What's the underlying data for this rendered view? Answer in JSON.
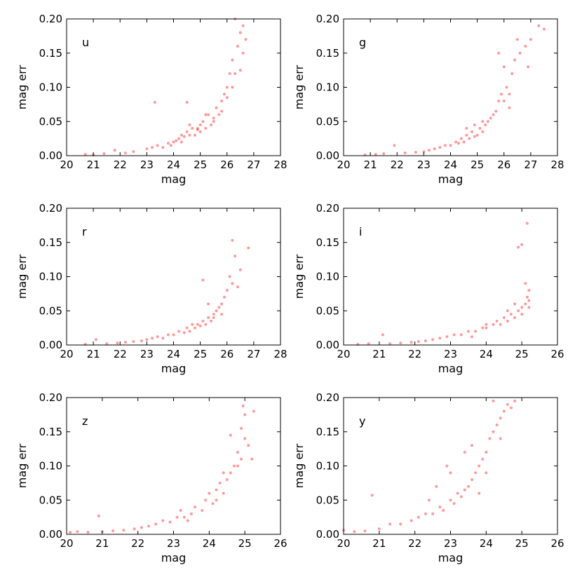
{
  "chart_data": [
    {
      "type": "scatter",
      "label": "u",
      "xlabel": "mag",
      "ylabel": "mag err",
      "xlim": [
        20,
        28
      ],
      "ylim": [
        0.0,
        0.2
      ],
      "xticks": [
        "20",
        "21",
        "22",
        "23",
        "24",
        "25",
        "26",
        "27",
        "28"
      ],
      "yticks": [
        "0.00",
        "0.05",
        "0.10",
        "0.15",
        "0.20"
      ],
      "color": "#ff0000",
      "points": [
        [
          20.7,
          0.002
        ],
        [
          21.0,
          0.001
        ],
        [
          21.4,
          0.003
        ],
        [
          21.8,
          0.008
        ],
        [
          22.2,
          0.004
        ],
        [
          22.5,
          0.006
        ],
        [
          23.0,
          0.01
        ],
        [
          23.2,
          0.012
        ],
        [
          23.3,
          0.078
        ],
        [
          23.4,
          0.015
        ],
        [
          23.6,
          0.012
        ],
        [
          23.8,
          0.018
        ],
        [
          23.9,
          0.015
        ],
        [
          24.0,
          0.02
        ],
        [
          24.1,
          0.022
        ],
        [
          24.2,
          0.025
        ],
        [
          24.3,
          0.02
        ],
        [
          24.3,
          0.03
        ],
        [
          24.4,
          0.028
        ],
        [
          24.5,
          0.035
        ],
        [
          24.5,
          0.078
        ],
        [
          24.6,
          0.03
        ],
        [
          24.7,
          0.04
        ],
        [
          24.8,
          0.03
        ],
        [
          24.9,
          0.04
        ],
        [
          25.0,
          0.045
        ],
        [
          25.0,
          0.035
        ],
        [
          25.1,
          0.05
        ],
        [
          25.2,
          0.04
        ],
        [
          25.3,
          0.06
        ],
        [
          25.4,
          0.045
        ],
        [
          25.5,
          0.055
        ],
        [
          25.6,
          0.07
        ],
        [
          25.7,
          0.06
        ],
        [
          25.8,
          0.08
        ],
        [
          25.9,
          0.09
        ],
        [
          26.0,
          0.1
        ],
        [
          26.1,
          0.12
        ],
        [
          26.2,
          0.14
        ],
        [
          26.3,
          0.12
        ],
        [
          26.4,
          0.16
        ],
        [
          26.5,
          0.18
        ],
        [
          26.6,
          0.15
        ],
        [
          26.7,
          0.17
        ],
        [
          26.3,
          0.2
        ],
        [
          26.6,
          0.19
        ],
        [
          25.2,
          0.06
        ],
        [
          24.6,
          0.045
        ],
        [
          25.8,
          0.065
        ],
        [
          26.0,
          0.085
        ],
        [
          26.2,
          0.1
        ],
        [
          26.5,
          0.125
        ],
        [
          25.5,
          0.05
        ],
        [
          24.9,
          0.038
        ]
      ]
    },
    {
      "type": "scatter",
      "label": "g",
      "xlabel": "mag",
      "ylabel": "mag err",
      "xlim": [
        20,
        28
      ],
      "ylim": [
        0.0,
        0.2
      ],
      "xticks": [
        "20",
        "21",
        "22",
        "23",
        "24",
        "25",
        "26",
        "27",
        "28"
      ],
      "yticks": [
        "0.00",
        "0.05",
        "0.10",
        "0.15",
        "0.20"
      ],
      "color": "#ff0000",
      "points": [
        [
          20.8,
          0.001
        ],
        [
          21.2,
          0.002
        ],
        [
          21.5,
          0.003
        ],
        [
          21.9,
          0.015
        ],
        [
          22.3,
          0.004
        ],
        [
          22.7,
          0.005
        ],
        [
          23.0,
          0.006
        ],
        [
          23.2,
          0.008
        ],
        [
          23.4,
          0.01
        ],
        [
          23.6,
          0.012
        ],
        [
          23.8,
          0.015
        ],
        [
          24.0,
          0.015
        ],
        [
          24.2,
          0.02
        ],
        [
          24.3,
          0.018
        ],
        [
          24.4,
          0.025
        ],
        [
          24.5,
          0.02
        ],
        [
          24.6,
          0.03
        ],
        [
          24.7,
          0.025
        ],
        [
          24.8,
          0.035
        ],
        [
          24.9,
          0.028
        ],
        [
          25.0,
          0.03
        ],
        [
          25.1,
          0.04
        ],
        [
          25.2,
          0.035
        ],
        [
          25.3,
          0.045
        ],
        [
          25.4,
          0.05
        ],
        [
          25.5,
          0.055
        ],
        [
          25.6,
          0.06
        ],
        [
          25.7,
          0.065
        ],
        [
          25.8,
          0.08
        ],
        [
          25.9,
          0.09
        ],
        [
          26.0,
          0.08
        ],
        [
          26.1,
          0.1
        ],
        [
          26.2,
          0.07
        ],
        [
          26.3,
          0.12
        ],
        [
          26.4,
          0.14
        ],
        [
          26.5,
          0.17
        ],
        [
          26.6,
          0.15
        ],
        [
          26.8,
          0.16
        ],
        [
          26.9,
          0.13
        ],
        [
          27.0,
          0.17
        ],
        [
          27.3,
          0.19
        ],
        [
          27.5,
          0.185
        ],
        [
          25.8,
          0.15
        ],
        [
          26.0,
          0.13
        ],
        [
          24.6,
          0.04
        ],
        [
          24.9,
          0.045
        ],
        [
          25.2,
          0.05
        ],
        [
          26.2,
          0.09
        ]
      ]
    },
    {
      "type": "scatter",
      "label": "r",
      "xlabel": "mag",
      "ylabel": "mag err",
      "xlim": [
        20,
        28
      ],
      "ylim": [
        0.0,
        0.2
      ],
      "xticks": [
        "20",
        "21",
        "22",
        "23",
        "24",
        "25",
        "26",
        "27",
        "28"
      ],
      "yticks": [
        "0.00",
        "0.05",
        "0.10",
        "0.15",
        "0.20"
      ],
      "color": "#ff0000",
      "points": [
        [
          20.7,
          0.001
        ],
        [
          21.1,
          0.008
        ],
        [
          21.5,
          0.002
        ],
        [
          21.9,
          0.003
        ],
        [
          22.2,
          0.004
        ],
        [
          22.5,
          0.005
        ],
        [
          22.8,
          0.006
        ],
        [
          23.0,
          0.008
        ],
        [
          23.2,
          0.01
        ],
        [
          23.4,
          0.012
        ],
        [
          23.6,
          0.01
        ],
        [
          23.8,
          0.015
        ],
        [
          24.0,
          0.015
        ],
        [
          24.2,
          0.02
        ],
        [
          24.4,
          0.018
        ],
        [
          24.5,
          0.025
        ],
        [
          24.6,
          0.02
        ],
        [
          24.8,
          0.025
        ],
        [
          24.9,
          0.03
        ],
        [
          25.0,
          0.028
        ],
        [
          25.1,
          0.035
        ],
        [
          25.2,
          0.03
        ],
        [
          25.3,
          0.04
        ],
        [
          25.4,
          0.035
        ],
        [
          25.5,
          0.045
        ],
        [
          25.6,
          0.05
        ],
        [
          25.7,
          0.055
        ],
        [
          25.8,
          0.06
        ],
        [
          25.9,
          0.07
        ],
        [
          26.0,
          0.08
        ],
        [
          26.1,
          0.1
        ],
        [
          26.2,
          0.09
        ],
        [
          26.3,
          0.13
        ],
        [
          26.5,
          0.11
        ],
        [
          26.2,
          0.153
        ],
        [
          26.8,
          0.142
        ],
        [
          25.1,
          0.095
        ],
        [
          25.3,
          0.06
        ],
        [
          24.7,
          0.03
        ],
        [
          25.5,
          0.04
        ],
        [
          25.8,
          0.045
        ],
        [
          26.4,
          0.085
        ]
      ]
    },
    {
      "type": "scatter",
      "label": "i",
      "xlabel": "mag",
      "ylabel": "mag err",
      "xlim": [
        20,
        26
      ],
      "ylim": [
        0.0,
        0.2
      ],
      "xticks": [
        "20",
        "21",
        "22",
        "23",
        "24",
        "25",
        "26"
      ],
      "yticks": [
        "0.00",
        "0.05",
        "0.10",
        "0.15",
        "0.20"
      ],
      "color": "#ff0000",
      "points": [
        [
          20.4,
          0.001
        ],
        [
          20.7,
          0.002
        ],
        [
          21.1,
          0.015
        ],
        [
          21.3,
          0.002
        ],
        [
          21.6,
          0.003
        ],
        [
          21.9,
          0.004
        ],
        [
          22.1,
          0.005
        ],
        [
          22.3,
          0.006
        ],
        [
          22.5,
          0.008
        ],
        [
          22.7,
          0.01
        ],
        [
          22.9,
          0.012
        ],
        [
          23.1,
          0.015
        ],
        [
          23.3,
          0.015
        ],
        [
          23.5,
          0.02
        ],
        [
          23.7,
          0.02
        ],
        [
          23.9,
          0.025
        ],
        [
          24.0,
          0.025
        ],
        [
          24.2,
          0.03
        ],
        [
          24.3,
          0.035
        ],
        [
          24.4,
          0.03
        ],
        [
          24.5,
          0.04
        ],
        [
          24.6,
          0.035
        ],
        [
          24.7,
          0.045
        ],
        [
          24.8,
          0.04
        ],
        [
          24.9,
          0.05
        ],
        [
          25.0,
          0.055
        ],
        [
          25.1,
          0.06
        ],
        [
          25.15,
          0.07
        ],
        [
          25.2,
          0.065
        ],
        [
          25.1,
          0.09
        ],
        [
          25.2,
          0.08
        ],
        [
          24.9,
          0.143
        ],
        [
          25.0,
          0.147
        ],
        [
          25.15,
          0.178
        ],
        [
          24.6,
          0.05
        ],
        [
          24.0,
          0.03
        ],
        [
          23.6,
          0.012
        ],
        [
          25.0,
          0.045
        ],
        [
          24.8,
          0.06
        ],
        [
          25.2,
          0.055
        ]
      ]
    },
    {
      "type": "scatter",
      "label": "z",
      "xlabel": "mag",
      "ylabel": "mag err",
      "xlim": [
        20,
        26
      ],
      "ylim": [
        0.0,
        0.2
      ],
      "xticks": [
        "20",
        "21",
        "22",
        "23",
        "24",
        "25",
        "26"
      ],
      "yticks": [
        "0.00",
        "0.05",
        "0.10",
        "0.15",
        "0.20"
      ],
      "color": "#ff0000",
      "points": [
        [
          20.1,
          0.003
        ],
        [
          20.3,
          0.004
        ],
        [
          20.6,
          0.003
        ],
        [
          20.9,
          0.027
        ],
        [
          21.0,
          0.004
        ],
        [
          21.3,
          0.005
        ],
        [
          21.6,
          0.006
        ],
        [
          21.9,
          0.008
        ],
        [
          22.1,
          0.01
        ],
        [
          22.3,
          0.012
        ],
        [
          22.5,
          0.015
        ],
        [
          22.7,
          0.02
        ],
        [
          22.9,
          0.018
        ],
        [
          23.1,
          0.025
        ],
        [
          23.3,
          0.025
        ],
        [
          23.5,
          0.03
        ],
        [
          23.6,
          0.04
        ],
        [
          23.8,
          0.035
        ],
        [
          23.9,
          0.05
        ],
        [
          24.0,
          0.06
        ],
        [
          24.1,
          0.045
        ],
        [
          24.2,
          0.065
        ],
        [
          24.3,
          0.075
        ],
        [
          24.4,
          0.06
        ],
        [
          24.5,
          0.08
        ],
        [
          24.6,
          0.09
        ],
        [
          24.7,
          0.1
        ],
        [
          24.8,
          0.12
        ],
        [
          24.9,
          0.11
        ],
        [
          25.0,
          0.14
        ],
        [
          25.1,
          0.13
        ],
        [
          24.9,
          0.155
        ],
        [
          25.0,
          0.175
        ],
        [
          24.95,
          0.188
        ],
        [
          25.25,
          0.18
        ],
        [
          24.6,
          0.145
        ],
        [
          23.2,
          0.035
        ],
        [
          23.4,
          0.02
        ],
        [
          24.2,
          0.05
        ],
        [
          24.4,
          0.09
        ],
        [
          24.8,
          0.1
        ],
        [
          25.2,
          0.11
        ]
      ]
    },
    {
      "type": "scatter",
      "label": "y",
      "xlabel": "mag",
      "ylabel": "mag err",
      "xlim": [
        20,
        26
      ],
      "ylim": [
        0.0,
        0.2
      ],
      "xticks": [
        "20",
        "21",
        "22",
        "23",
        "24",
        "25",
        "26"
      ],
      "yticks": [
        "0.00",
        "0.05",
        "0.10",
        "0.15",
        "0.20"
      ],
      "color": "#ff0000",
      "points": [
        [
          20.0,
          0.006
        ],
        [
          20.3,
          0.004
        ],
        [
          20.6,
          0.005
        ],
        [
          20.8,
          0.057
        ],
        [
          21.0,
          0.008
        ],
        [
          21.3,
          0.015
        ],
        [
          21.6,
          0.015
        ],
        [
          21.9,
          0.02
        ],
        [
          22.1,
          0.025
        ],
        [
          22.3,
          0.03
        ],
        [
          22.5,
          0.03
        ],
        [
          22.7,
          0.04
        ],
        [
          22.8,
          0.035
        ],
        [
          23.0,
          0.05
        ],
        [
          23.1,
          0.045
        ],
        [
          23.2,
          0.06
        ],
        [
          23.3,
          0.055
        ],
        [
          23.4,
          0.065
        ],
        [
          23.5,
          0.07
        ],
        [
          23.6,
          0.08
        ],
        [
          23.7,
          0.09
        ],
        [
          23.8,
          0.1
        ],
        [
          23.9,
          0.11
        ],
        [
          24.0,
          0.12
        ],
        [
          24.1,
          0.14
        ],
        [
          24.2,
          0.15
        ],
        [
          24.3,
          0.16
        ],
        [
          24.4,
          0.17
        ],
        [
          24.5,
          0.18
        ],
        [
          24.6,
          0.19
        ],
        [
          24.7,
          0.185
        ],
        [
          24.8,
          0.195
        ],
        [
          24.2,
          0.195
        ],
        [
          23.6,
          0.13
        ],
        [
          23.0,
          0.09
        ],
        [
          22.6,
          0.07
        ],
        [
          22.9,
          0.1
        ],
        [
          23.4,
          0.12
        ],
        [
          24.0,
          0.09
        ],
        [
          24.4,
          0.14
        ],
        [
          23.8,
          0.06
        ],
        [
          22.4,
          0.05
        ]
      ]
    }
  ]
}
